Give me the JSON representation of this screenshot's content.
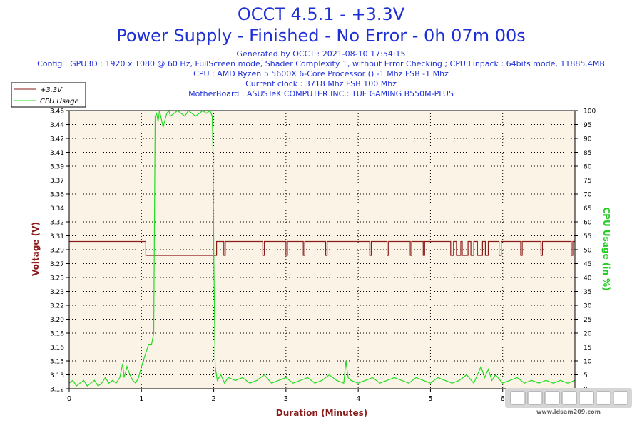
{
  "header": {
    "title_line1": "OCCT 4.5.1 - +3.3V",
    "title_line2": "Power Supply - Finished - No Error - 0h 07m 00s",
    "generated": "Generated by OCCT : 2021-08-10 17:54:15",
    "config": "Config : GPU3D : 1920 x 1080 @ 60 Hz, FullScreen mode, Shader Complexity 1, without Error Checking ; CPU:Linpack : 64bits mode, 11885.4MB",
    "cpu": "CPU : AMD Ryzen 5 5600X 6-Core Processor () -1 Mhz FSB -1 Mhz",
    "clock": "Current clock : 3718 Mhz FSB 100 Mhz",
    "motherboard": "MotherBoard : ASUSTeK COMPUTER INC.: TUF GAMING B550M-PLUS"
  },
  "watermark": {
    "text": "www.idsam209.com"
  },
  "chart_data": {
    "type": "line",
    "xlabel": "Duration (Minutes)",
    "ylabel_left": "Voltage (V)",
    "ylabel_right": "CPU Usage (in %)",
    "xlim": [
      0,
      7
    ],
    "ylim_left": [
      3.12,
      3.46
    ],
    "ylim_right": [
      0,
      100
    ],
    "grid": true,
    "legend_position": "top-left",
    "x_ticks": [
      "0",
      "1",
      "2",
      "3",
      "4",
      "5",
      "6",
      "7"
    ],
    "y_left_ticks": [
      "3.12",
      "3.13",
      "3.15",
      "3.16",
      "3.18",
      "3.20",
      "3.22",
      "3.23",
      "3.25",
      "3.27",
      "3.29",
      "3.31",
      "3.32",
      "3.34",
      "3.36",
      "3.37",
      "3.39",
      "3.41",
      "3.42",
      "3.44",
      "3.46"
    ],
    "y_right_ticks": [
      "0",
      "5",
      "10",
      "15",
      "20",
      "25",
      "30",
      "35",
      "40",
      "45",
      "50",
      "55",
      "60",
      "65",
      "70",
      "75",
      "80",
      "85",
      "90",
      "95",
      "100"
    ],
    "colors": {
      "voltage": "#8b1a1a",
      "cpu": "#22dd22",
      "plot_bg": "#fbf3e6",
      "label_left": "#8b1a1a",
      "label_right": "#22cc22",
      "label_x": "#8b1a1a"
    },
    "series": [
      {
        "name": "+3.3V",
        "axis": "left",
        "x": [
          0,
          1.06,
          1.06,
          2.02,
          2.02,
          2.04,
          2.04,
          2.14,
          2.14,
          2.16,
          2.16,
          2.68,
          2.68,
          2.7,
          2.7,
          3.0,
          3.0,
          3.02,
          3.02,
          3.24,
          3.24,
          3.26,
          3.26,
          3.55,
          3.55,
          3.57,
          3.57,
          4.16,
          4.16,
          4.18,
          4.18,
          4.4,
          4.4,
          4.42,
          4.42,
          4.72,
          4.72,
          4.74,
          4.74,
          4.9,
          4.9,
          4.92,
          4.92,
          5.28,
          5.28,
          5.32,
          5.32,
          5.36,
          5.36,
          5.42,
          5.42,
          5.44,
          5.44,
          5.52,
          5.52,
          5.56,
          5.56,
          5.6,
          5.6,
          5.65,
          5.65,
          5.72,
          5.72,
          5.76,
          5.76,
          5.8,
          5.8,
          5.95,
          5.95,
          5.98,
          5.98,
          6.25,
          6.25,
          6.27,
          6.27,
          6.53,
          6.53,
          6.55,
          6.55,
          6.95,
          6.95,
          6.97,
          6.97,
          7.0
        ],
        "y": [
          3.3,
          3.3,
          3.283,
          3.283,
          3.283,
          3.283,
          3.3,
          3.3,
          3.283,
          3.283,
          3.3,
          3.3,
          3.283,
          3.283,
          3.3,
          3.3,
          3.283,
          3.283,
          3.3,
          3.3,
          3.283,
          3.283,
          3.3,
          3.3,
          3.283,
          3.283,
          3.3,
          3.3,
          3.283,
          3.283,
          3.3,
          3.3,
          3.283,
          3.283,
          3.3,
          3.3,
          3.283,
          3.283,
          3.3,
          3.3,
          3.283,
          3.283,
          3.3,
          3.3,
          3.283,
          3.283,
          3.3,
          3.3,
          3.283,
          3.283,
          3.3,
          3.3,
          3.283,
          3.283,
          3.3,
          3.3,
          3.283,
          3.283,
          3.3,
          3.3,
          3.283,
          3.283,
          3.3,
          3.3,
          3.283,
          3.283,
          3.3,
          3.3,
          3.283,
          3.283,
          3.3,
          3.3,
          3.283,
          3.283,
          3.3,
          3.3,
          3.283,
          3.283,
          3.3,
          3.3,
          3.283,
          3.283,
          3.3,
          3.3
        ]
      },
      {
        "name": "CPU Usage",
        "axis": "right",
        "x": [
          0,
          0.05,
          0.1,
          0.15,
          0.2,
          0.25,
          0.3,
          0.35,
          0.4,
          0.45,
          0.5,
          0.55,
          0.6,
          0.65,
          0.7,
          0.74,
          0.76,
          0.8,
          0.84,
          0.88,
          0.92,
          0.96,
          1.0,
          1.05,
          1.1,
          1.14,
          1.17,
          1.19,
          1.21,
          1.23,
          1.25,
          1.3,
          1.35,
          1.38,
          1.4,
          1.45,
          1.5,
          1.55,
          1.6,
          1.65,
          1.7,
          1.75,
          1.8,
          1.85,
          1.9,
          1.95,
          1.98,
          1.99,
          2.0,
          2.02,
          2.05,
          2.1,
          2.15,
          2.2,
          2.3,
          2.4,
          2.5,
          2.6,
          2.7,
          2.8,
          2.9,
          3.0,
          3.1,
          3.2,
          3.3,
          3.4,
          3.5,
          3.6,
          3.7,
          3.8,
          3.83,
          3.86,
          3.9,
          4.0,
          4.1,
          4.2,
          4.3,
          4.4,
          4.5,
          4.6,
          4.7,
          4.8,
          4.9,
          5.0,
          5.1,
          5.2,
          5.3,
          5.4,
          5.5,
          5.6,
          5.7,
          5.75,
          5.8,
          5.85,
          5.9,
          6.0,
          6.1,
          6.2,
          6.3,
          6.4,
          6.5,
          6.6,
          6.7,
          6.8,
          6.9,
          7.0
        ],
        "y": [
          2,
          3,
          1,
          2,
          3,
          1,
          2,
          3,
          1,
          2,
          4,
          2,
          3,
          2,
          4,
          9,
          4,
          8,
          5,
          3,
          2,
          4,
          8,
          12,
          16,
          16,
          20,
          98,
          99,
          96,
          100,
          94,
          99,
          100,
          98,
          99,
          100,
          99,
          98,
          100,
          99,
          98,
          99,
          100,
          99,
          100,
          98,
          85,
          50,
          8,
          3,
          5,
          2,
          4,
          3,
          4,
          2,
          3,
          5,
          2,
          3,
          4,
          2,
          3,
          4,
          2,
          3,
          5,
          3,
          2,
          10,
          4,
          3,
          2,
          3,
          4,
          2,
          3,
          4,
          3,
          2,
          4,
          3,
          2,
          4,
          3,
          2,
          3,
          5,
          2,
          8,
          4,
          7,
          3,
          5,
          2,
          3,
          4,
          2,
          3,
          2,
          3,
          2,
          3,
          2,
          3
        ]
      }
    ]
  }
}
